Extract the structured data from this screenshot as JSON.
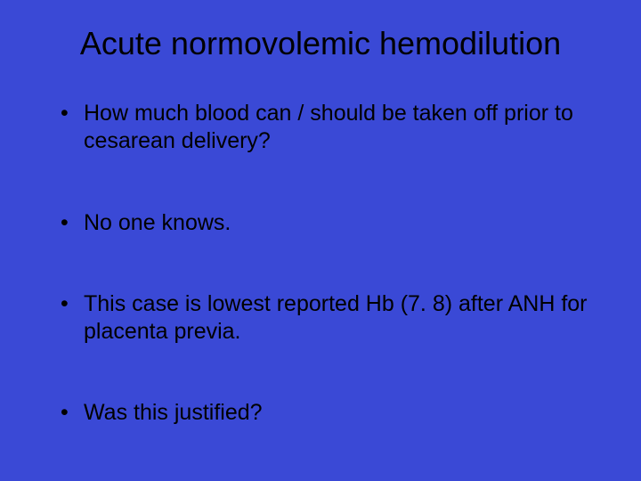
{
  "slide": {
    "background_color": "#3a49d6",
    "text_color": "#000000",
    "title": {
      "text": "Acute normovolemic hemodilution",
      "fontsize": 36
    },
    "body_fontsize": 25,
    "bullets": [
      {
        "text": "How much blood can / should be taken off prior to cesarean delivery?"
      },
      {
        "text": "No one knows."
      },
      {
        "text": "This case is lowest reported Hb (7. 8) after ANH for placenta previa."
      },
      {
        "text": "Was this justified?"
      }
    ]
  }
}
